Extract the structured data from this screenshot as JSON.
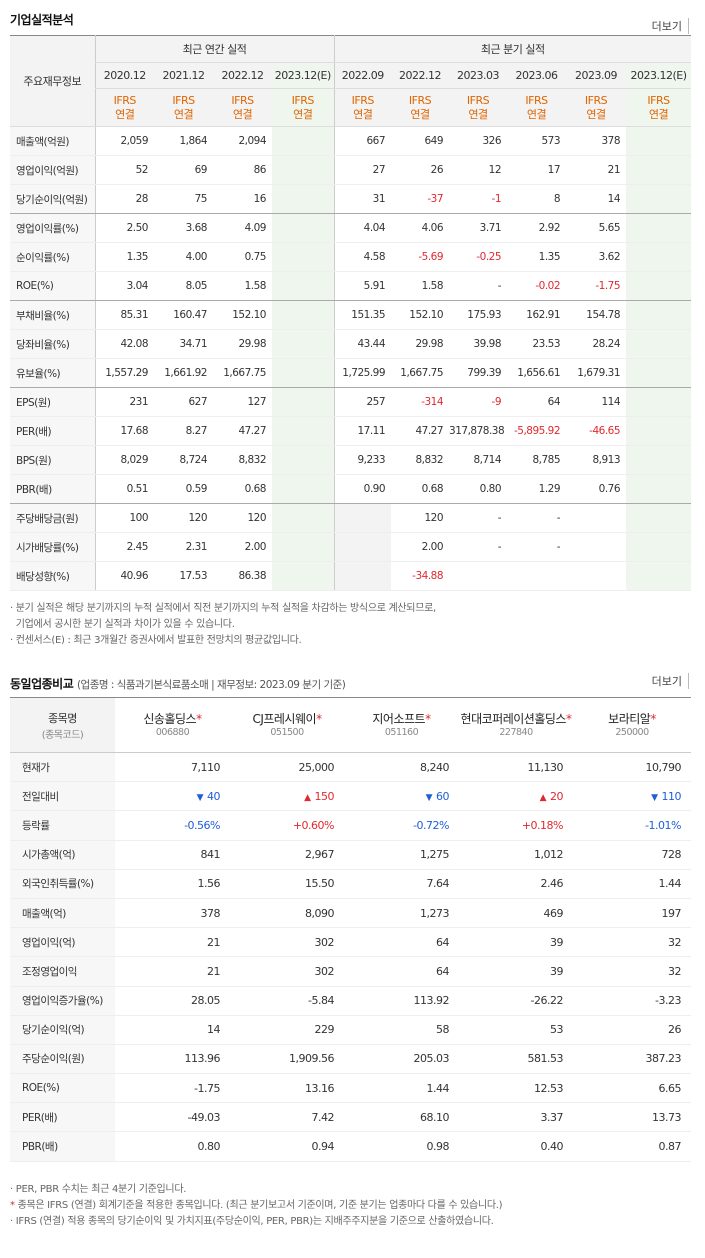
{
  "fin": {
    "title": "기업실적분석",
    "more": "더보기",
    "row_header": "주요재무정보",
    "annual_header": "최근 연간 실적",
    "quarter_header": "최근 분기 실적",
    "periods": [
      "2020.12",
      "2021.12",
      "2022.12",
      "2023.12(E)",
      "2022.09",
      "2022.12",
      "2023.03",
      "2023.06",
      "2023.09",
      "2023.12(E)"
    ],
    "ifrs_top": "IFRS",
    "ifrs_bottom": "연결",
    "rows": [
      {
        "label": "매출액(억원)",
        "values": [
          "2,059",
          "1,864",
          "2,094",
          "",
          "667",
          "649",
          "326",
          "573",
          "378",
          ""
        ]
      },
      {
        "label": "영업이익(억원)",
        "values": [
          "52",
          "69",
          "86",
          "",
          "27",
          "26",
          "12",
          "17",
          "21",
          ""
        ]
      },
      {
        "label": "당기순이익(억원)",
        "values": [
          "28",
          "75",
          "16",
          "",
          "31",
          "-37",
          "-1",
          "8",
          "14",
          ""
        ]
      },
      {
        "label": "영업이익률(%)",
        "values": [
          "2.50",
          "3.68",
          "4.09",
          "",
          "4.04",
          "4.06",
          "3.71",
          "2.92",
          "5.65",
          ""
        ]
      },
      {
        "label": "순이익률(%)",
        "values": [
          "1.35",
          "4.00",
          "0.75",
          "",
          "4.58",
          "-5.69",
          "-0.25",
          "1.35",
          "3.62",
          ""
        ]
      },
      {
        "label": "ROE(%)",
        "values": [
          "3.04",
          "8.05",
          "1.58",
          "",
          "5.91",
          "1.58",
          "-",
          "-0.02",
          "-1.75",
          ""
        ]
      },
      {
        "label": "부채비율(%)",
        "values": [
          "85.31",
          "160.47",
          "152.10",
          "",
          "151.35",
          "152.10",
          "175.93",
          "162.91",
          "154.78",
          ""
        ]
      },
      {
        "label": "당좌비율(%)",
        "values": [
          "42.08",
          "34.71",
          "29.98",
          "",
          "43.44",
          "29.98",
          "39.98",
          "23.53",
          "28.24",
          ""
        ]
      },
      {
        "label": "유보율(%)",
        "values": [
          "1,557.29",
          "1,661.92",
          "1,667.75",
          "",
          "1,725.99",
          "1,667.75",
          "799.39",
          "1,656.61",
          "1,679.31",
          ""
        ]
      },
      {
        "label": "EPS(원)",
        "values": [
          "231",
          "627",
          "127",
          "",
          "257",
          "-314",
          "-9",
          "64",
          "114",
          ""
        ]
      },
      {
        "label": "PER(배)",
        "values": [
          "17.68",
          "8.27",
          "47.27",
          "",
          "17.11",
          "47.27",
          "317,878.38",
          "-5,895.92",
          "-46.65",
          ""
        ]
      },
      {
        "label": "BPS(원)",
        "values": [
          "8,029",
          "8,724",
          "8,832",
          "",
          "9,233",
          "8,832",
          "8,714",
          "8,785",
          "8,913",
          ""
        ]
      },
      {
        "label": "PBR(배)",
        "values": [
          "0.51",
          "0.59",
          "0.68",
          "",
          "0.90",
          "0.68",
          "0.80",
          "1.29",
          "0.76",
          ""
        ]
      },
      {
        "label": "주당배당금(원)",
        "values": [
          "100",
          "120",
          "120",
          "",
          "",
          "120",
          "-",
          "-",
          "",
          ""
        ]
      },
      {
        "label": "시가배당률(%)",
        "values": [
          "2.45",
          "2.31",
          "2.00",
          "",
          "",
          "2.00",
          "-",
          "-",
          "",
          ""
        ]
      },
      {
        "label": "배당성향(%)",
        "values": [
          "40.96",
          "17.53",
          "86.38",
          "",
          "",
          "-34.88",
          "",
          "",
          "",
          ""
        ]
      }
    ],
    "notes": [
      "· 분기 실적은 해당 분기까지의 누적 실적에서 직전 분기까지의 누적 실적을 차감하는 방식으로 계산되므로,",
      "  기업에서 공시한 분기 실적과 차이가 있을 수 있습니다.",
      "· 컨센서스(E) : 최근 3개월간 증권사에서 발표한 전망치의 평균값입니다."
    ]
  },
  "peer": {
    "title": "동일업종비교",
    "subtitle": "(업종명 : 식품과기본식료품소매 | 재무정보: 2023.09 분기 기준)",
    "more": "더보기",
    "header_label": "종목명",
    "header_sub": "(종목코드)",
    "companies": [
      {
        "name": "신송홀딩스",
        "code": "006880",
        "star": "*"
      },
      {
        "name": "CJ프레시웨이",
        "code": "051500",
        "star": "*"
      },
      {
        "name": "지어소프트",
        "code": "051160",
        "star": "*"
      },
      {
        "name": "현대코퍼레이션홀딩스",
        "code": "227840",
        "star": "*"
      },
      {
        "name": "보라티알",
        "code": "250000",
        "star": "*"
      }
    ],
    "rows": [
      {
        "label": "현재가",
        "values": [
          "7,110",
          "25,000",
          "8,240",
          "11,130",
          "10,790"
        ]
      },
      {
        "label": "전일대비",
        "values": [
          "40",
          "150",
          "60",
          "20",
          "110"
        ]
      },
      {
        "label": "등락률",
        "values": [
          "-0.56%",
          "+0.60%",
          "-0.72%",
          "+0.18%",
          "-1.01%"
        ]
      },
      {
        "label": "시가총액(억)",
        "values": [
          "841",
          "2,967",
          "1,275",
          "1,012",
          "728"
        ]
      },
      {
        "label": "외국인취득률(%)",
        "values": [
          "1.56",
          "15.50",
          "7.64",
          "2.46",
          "1.44"
        ]
      },
      {
        "label": "매출액(억)",
        "values": [
          "378",
          "8,090",
          "1,273",
          "469",
          "197"
        ]
      },
      {
        "label": "영업이익(억)",
        "values": [
          "21",
          "302",
          "64",
          "39",
          "32"
        ]
      },
      {
        "label": "조정영업이익",
        "values": [
          "21",
          "302",
          "64",
          "39",
          "32"
        ]
      },
      {
        "label": "영업이익증가율(%)",
        "values": [
          "28.05",
          "-5.84",
          "113.92",
          "-26.22",
          "-3.23"
        ]
      },
      {
        "label": "당기순이익(억)",
        "values": [
          "14",
          "229",
          "58",
          "53",
          "26"
        ]
      },
      {
        "label": "주당순이익(원)",
        "values": [
          "113.96",
          "1,909.56",
          "205.03",
          "581.53",
          "387.23"
        ]
      },
      {
        "label": "ROE(%)",
        "values": [
          "-1.75",
          "13.16",
          "1.44",
          "12.53",
          "6.65"
        ]
      },
      {
        "label": "PER(배)",
        "values": [
          "-49.03",
          "7.42",
          "68.10",
          "3.37",
          "13.73"
        ]
      },
      {
        "label": "PBR(배)",
        "values": [
          "0.80",
          "0.94",
          "0.98",
          "0.40",
          "0.87"
        ]
      }
    ],
    "change_dirs": [
      "down",
      "up",
      "down",
      "up",
      "down"
    ],
    "up_arrow": "▲",
    "down_arrow": "▼",
    "notes": [
      {
        "star": "",
        "text": "· PER, PBR 수치는 최근 4분기 기준입니다."
      },
      {
        "star": "*",
        "text": " 종목은 IFRS (연결) 회계기준을 적용한 종목입니다. (최근 분기보고서 기준이며, 기준 분기는 업종마다 다를 수 있습니다.)"
      },
      {
        "star": "",
        "text": "· IFRS (연결) 적용 종목의 당기순이익 및 가치지표(주당순이익, PER, PBR)는 지배주주지분을 기준으로 산출하였습니다."
      }
    ]
  }
}
